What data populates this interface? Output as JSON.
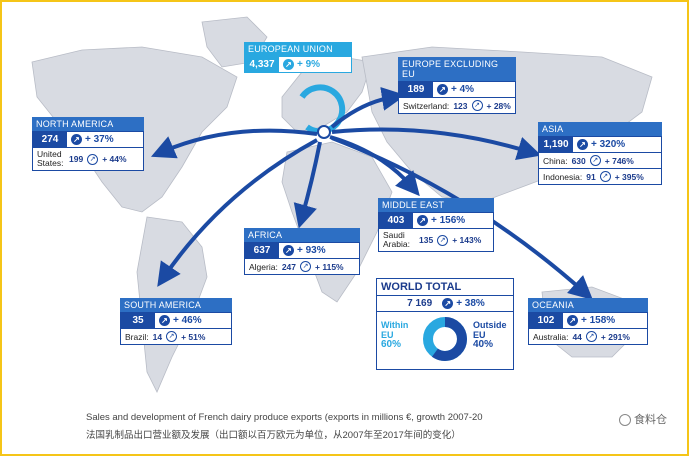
{
  "regions": {
    "eu": {
      "name": "EUROPEAN UNION",
      "value": "4,337",
      "growth": "+ 9%"
    },
    "europe_ex_eu": {
      "name": "EUROPE EXCLUDING EU",
      "value": "189",
      "growth": "+ 4%",
      "sub": [
        {
          "country": "Switzerland:",
          "value": "123",
          "growth": "+ 28%"
        }
      ]
    },
    "north_america": {
      "name": "NORTH AMERICA",
      "value": "274",
      "growth": "+ 37%",
      "sub": [
        {
          "country": "United States:",
          "value": "199",
          "growth": "+ 44%"
        }
      ]
    },
    "asia": {
      "name": "ASIA",
      "value": "1,190",
      "growth": "+ 320%",
      "sub": [
        {
          "country": "China:",
          "value": "630",
          "growth": "+ 746%"
        },
        {
          "country": "Indonesia:",
          "value": "91",
          "growth": "+ 395%"
        }
      ]
    },
    "middle_east": {
      "name": "MIDDLE EAST",
      "value": "403",
      "growth": "+ 156%",
      "sub": [
        {
          "country": "Saudi Arabia:",
          "value": "135",
          "growth": "+ 143%"
        }
      ]
    },
    "africa": {
      "name": "AFRICA",
      "value": "637",
      "growth": "+ 93%",
      "sub": [
        {
          "country": "Algeria:",
          "value": "247",
          "growth": "+ 115%"
        }
      ]
    },
    "south_america": {
      "name": "SOUTH AMERICA",
      "value": "35",
      "growth": "+ 46%",
      "sub": [
        {
          "country": "Brazil:",
          "value": "14",
          "growth": "+ 51%"
        }
      ]
    },
    "oceania": {
      "name": "OCEANIA",
      "value": "102",
      "growth": "+ 158%",
      "sub": [
        {
          "country": "Australia:",
          "value": "44",
          "growth": "+ 291%"
        }
      ]
    }
  },
  "world_total": {
    "title": "WORLD TOTAL",
    "value": "7 169",
    "growth": "+ 38%",
    "within_label": "Within EU",
    "within_value": "60%",
    "outside_label": "Outside EU",
    "outside_value": "40%",
    "within_fraction": 0.6
  },
  "caption": {
    "en": "Sales and development of French dairy produce exports (exports in millions €, growth 2007-20",
    "zh": "法国乳制品出口营业额及发展（出口额以百万欧元为单位，从2007年至2017年间的变化）"
  },
  "watermark": "食料仓",
  "colors": {
    "arrow": "#1b4aa3",
    "header": "#2d6fc4",
    "value_bg": "#1b4aa3",
    "eu_ring": "#29a8e0",
    "within": "#1b4aa3",
    "outside": "#29a8e0",
    "land": "#d8dbe2",
    "frame": "#f5c518"
  }
}
